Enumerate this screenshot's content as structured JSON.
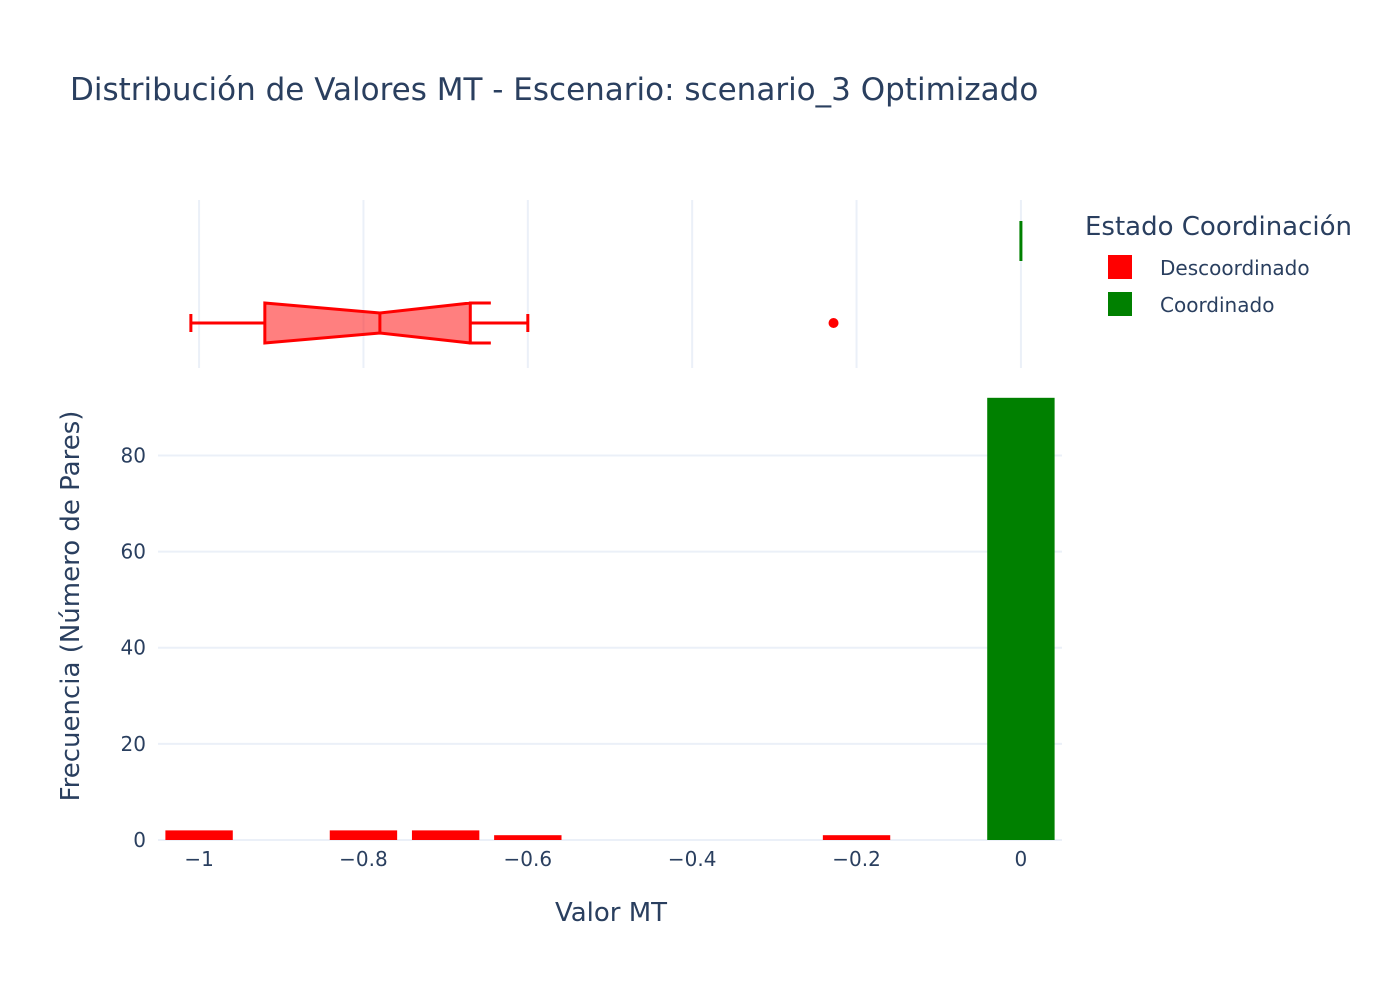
{
  "chart_data": {
    "type": "bar",
    "title": "Distribución de Valores MT - Escenario: scenario_3 Optimizado",
    "xlabel": "Valor MT",
    "ylabel": "Frecuencia (Número de Pares)",
    "xlim": [
      -1.05,
      0.05
    ],
    "ylim": [
      0,
      93
    ],
    "xticks": [
      -1,
      -0.8,
      -0.6,
      -0.4,
      -0.2,
      0
    ],
    "xtick_labels": [
      "−1",
      "−0.8",
      "−0.6",
      "−0.4",
      "−0.2",
      "0"
    ],
    "yticks": [
      0,
      20,
      40,
      60,
      80
    ],
    "ytick_labels": [
      "0",
      "20",
      "40",
      "60",
      "80"
    ],
    "grid": true,
    "legend_title": "Estado Coordinación",
    "legend_position": "top-right",
    "series": [
      {
        "name": "Descoordinado",
        "color": "#ff0000",
        "bins": [
          {
            "x0": -1.05,
            "x1": -0.95,
            "count": 2
          },
          {
            "x0": -0.85,
            "x1": -0.75,
            "count": 2
          },
          {
            "x0": -0.75,
            "x1": -0.65,
            "count": 2
          },
          {
            "x0": -0.65,
            "x1": -0.55,
            "count": 1
          },
          {
            "x0": -0.25,
            "x1": -0.15,
            "count": 1
          }
        ],
        "box": {
          "min": -1.01,
          "q1": -0.92,
          "median": -0.78,
          "q3": -0.67,
          "max": -0.6,
          "notch_low": -0.65,
          "notch_high": -0.91,
          "outliers": [
            -0.228
          ]
        }
      },
      {
        "name": "Coordinado",
        "color": "#008000",
        "bins": [
          {
            "x0": -0.05,
            "x1": 0.05,
            "count": 92
          }
        ],
        "box": {
          "min": 0,
          "q1": 0,
          "median": 0,
          "q3": 0,
          "max": 0,
          "outliers": []
        }
      }
    ]
  }
}
